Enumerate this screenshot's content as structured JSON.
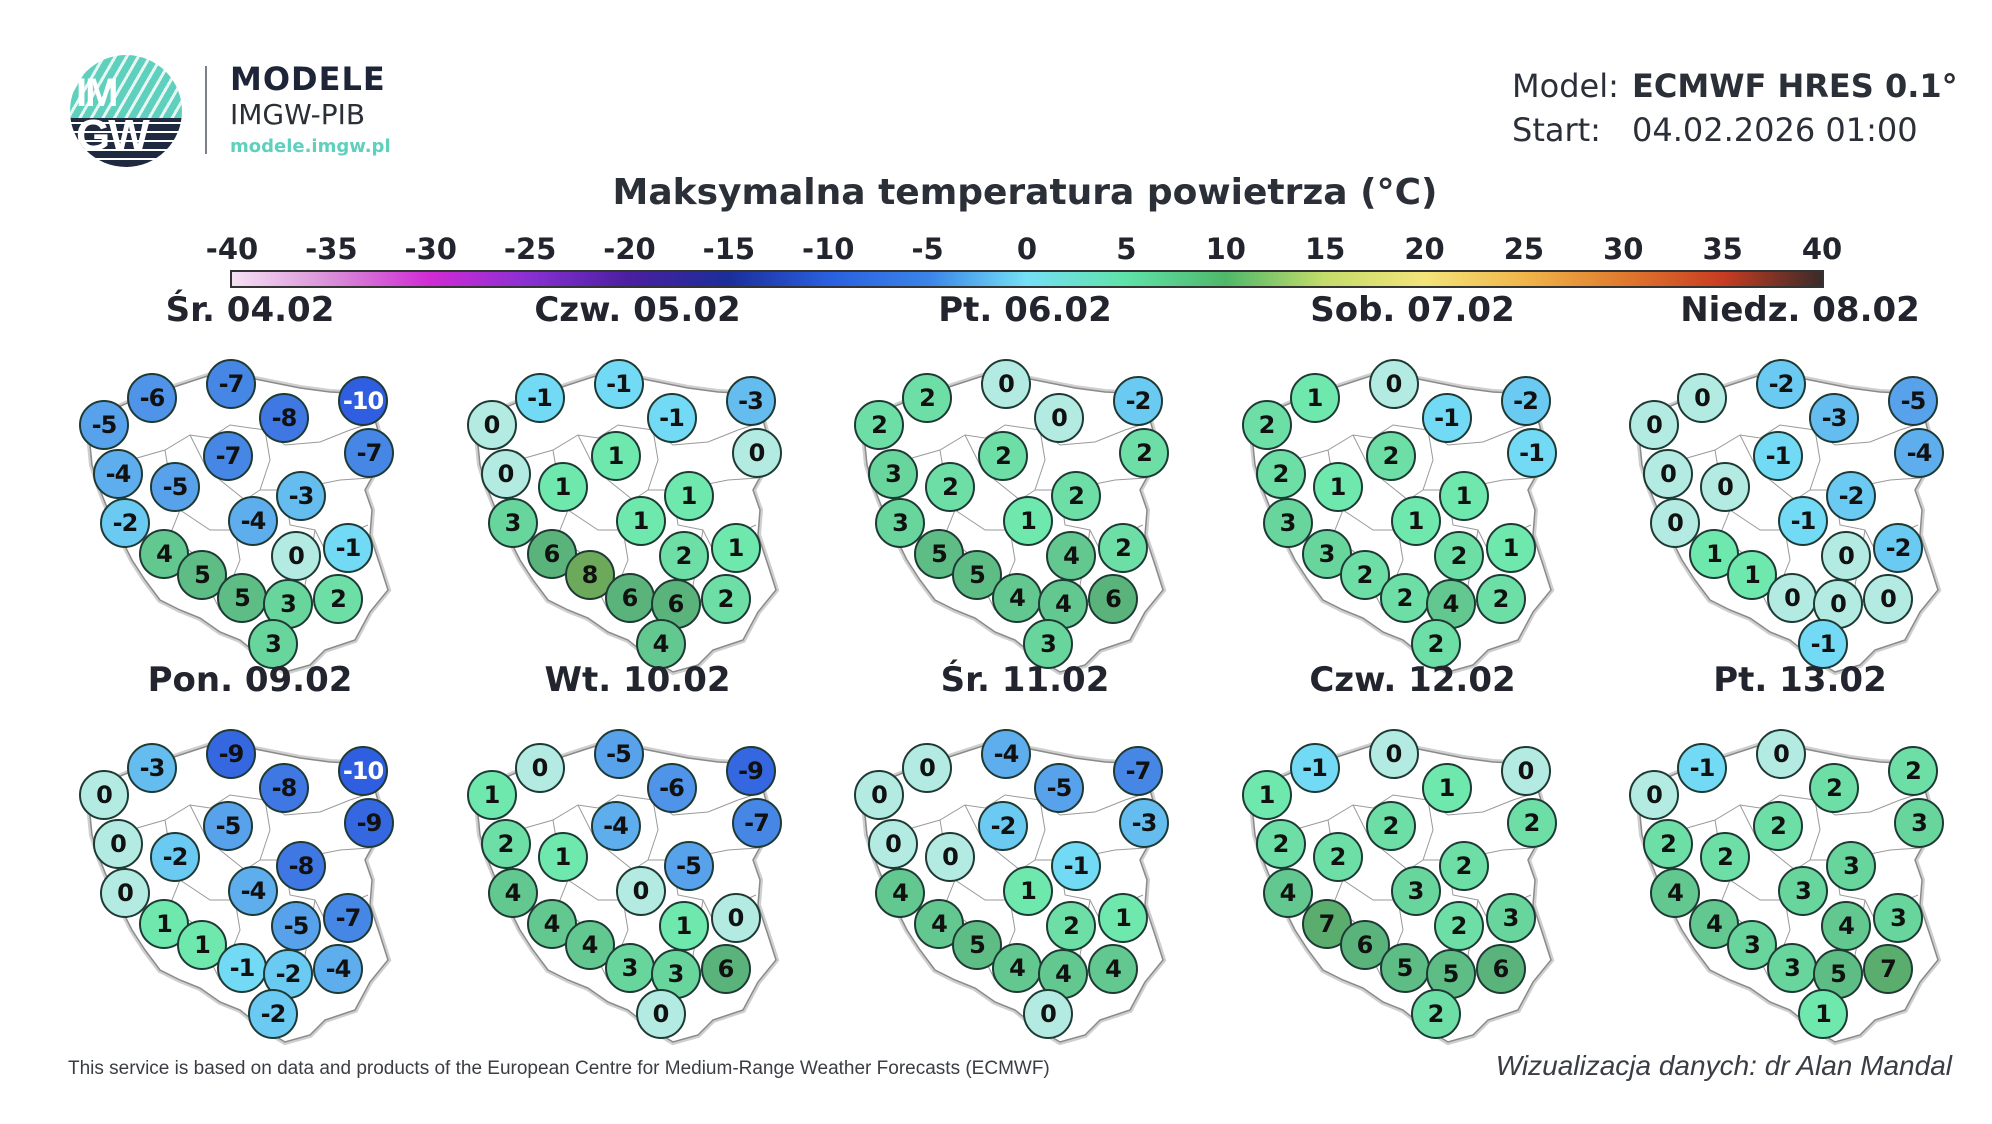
{
  "header": {
    "logo_text_top": "IM",
    "logo_text_bottom": "GW",
    "brand_title": "MODELE",
    "brand_subtitle": "IMGW-PIB",
    "brand_url": "modele.imgw.pl",
    "model_label": "Model:",
    "model_value": "ECMWF HRES 0.1°",
    "start_label": "Start:",
    "start_value": "04.02.2026 01:00"
  },
  "title": "Maksymalna temperatura powietrza (°C)",
  "colorbar": {
    "ticks": [
      "-40",
      "-35",
      "-30",
      "-25",
      "-20",
      "-15",
      "-10",
      "-5",
      "0",
      "5",
      "10",
      "15",
      "20",
      "25",
      "30",
      "35",
      "40"
    ],
    "min": -40,
    "max": 40
  },
  "maps": [
    {
      "label": "Śr. 04.02",
      "values": [
        -5,
        -6,
        -7,
        -8,
        -10,
        -7,
        -7,
        -4,
        -5,
        -3,
        -4,
        -2,
        4,
        0,
        -1,
        5,
        5,
        3,
        2,
        3
      ]
    },
    {
      "label": "Czw. 05.02",
      "values": [
        0,
        -1,
        -1,
        -1,
        -3,
        0,
        1,
        0,
        1,
        1,
        1,
        3,
        6,
        2,
        1,
        8,
        6,
        6,
        2,
        4
      ]
    },
    {
      "label": "Pt. 06.02",
      "values": [
        2,
        2,
        0,
        0,
        -2,
        2,
        2,
        3,
        2,
        2,
        1,
        3,
        5,
        4,
        2,
        5,
        4,
        4,
        6,
        3
      ]
    },
    {
      "label": "Sob. 07.02",
      "values": [
        2,
        1,
        0,
        -1,
        -2,
        -1,
        2,
        2,
        1,
        1,
        1,
        3,
        3,
        2,
        1,
        2,
        2,
        4,
        2,
        2
      ]
    },
    {
      "label": "Niedz. 08.02",
      "values": [
        0,
        0,
        -2,
        -3,
        -5,
        -4,
        -1,
        0,
        0,
        -2,
        -1,
        0,
        1,
        0,
        -2,
        1,
        0,
        0,
        0,
        -1
      ]
    },
    {
      "label": "Pon. 09.02",
      "values": [
        0,
        -3,
        -9,
        -8,
        -10,
        -9,
        -5,
        0,
        -2,
        -8,
        -4,
        0,
        1,
        -5,
        -7,
        1,
        -1,
        -2,
        -4,
        -2
      ]
    },
    {
      "label": "Wt. 10.02",
      "values": [
        1,
        0,
        -5,
        -6,
        -9,
        -7,
        -4,
        2,
        1,
        -5,
        0,
        4,
        4,
        1,
        0,
        4,
        3,
        3,
        6,
        0
      ]
    },
    {
      "label": "Śr. 11.02",
      "values": [
        0,
        0,
        -4,
        -5,
        -7,
        -3,
        -2,
        0,
        0,
        -1,
        1,
        4,
        4,
        2,
        1,
        5,
        4,
        4,
        4,
        0
      ]
    },
    {
      "label": "Czw. 12.02",
      "values": [
        1,
        -1,
        0,
        1,
        0,
        2,
        2,
        2,
        2,
        2,
        3,
        4,
        7,
        2,
        3,
        6,
        5,
        5,
        6,
        2
      ]
    },
    {
      "label": "Pt. 13.02",
      "values": [
        0,
        -1,
        0,
        2,
        2,
        3,
        2,
        2,
        2,
        3,
        3,
        4,
        4,
        4,
        3,
        3,
        3,
        5,
        7,
        1
      ]
    }
  ],
  "city_positions": [
    [
      33,
      74
    ],
    [
      81,
      47
    ],
    [
      160,
      33
    ],
    [
      213,
      67
    ],
    [
      292,
      50
    ],
    [
      298,
      102
    ],
    [
      157,
      105
    ],
    [
      47,
      123
    ],
    [
      104,
      136
    ],
    [
      230,
      145
    ],
    [
      182,
      170
    ],
    [
      54,
      172
    ],
    [
      93,
      203
    ],
    [
      225,
      205
    ],
    [
      277,
      197
    ],
    [
      131,
      224
    ],
    [
      171,
      247
    ],
    [
      217,
      253
    ],
    [
      267,
      248
    ],
    [
      202,
      293
    ]
  ],
  "footer": {
    "attribution": "This service is based on data and products of the European Centre for Medium-Range Weather Forecasts (ECMWF)",
    "credit": "Wizualizacja danych: dr Alan Mandal"
  }
}
